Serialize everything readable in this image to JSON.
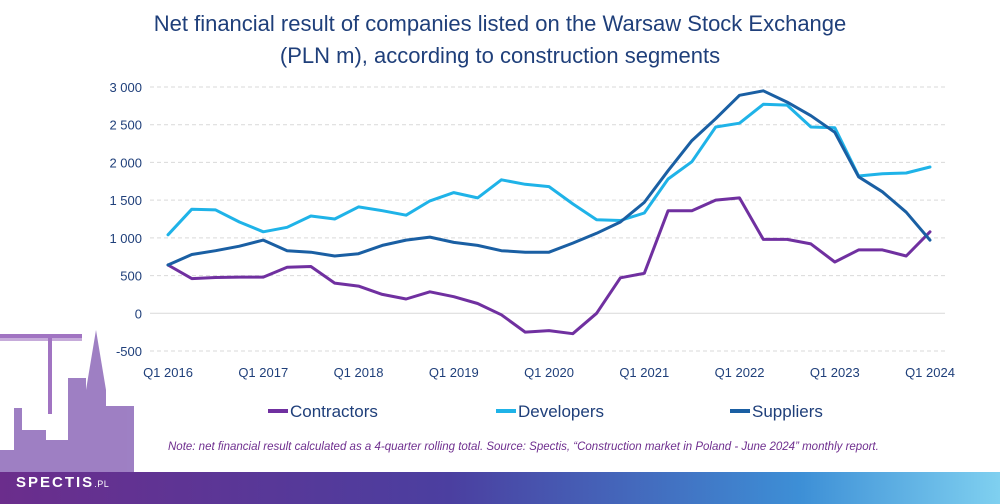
{
  "title_line1": "Net financial result of companies listed on the Warsaw Stock Exchange",
  "title_line2": "(PLN m), according to construction segments",
  "note": "Note: net financial result calculated as a 4-quarter rolling total. Source: Spectis, “Construction market in Poland - June 2024” monthly report.",
  "logo": {
    "name": "SPECTIS",
    "suffix": ".PL"
  },
  "colors": {
    "title": "#1f3f7a",
    "note": "#6f2f8f",
    "grid": "#d9d9d9"
  },
  "chart_data": {
    "type": "line",
    "x_tick_labels": [
      "Q1 2016",
      "Q1 2017",
      "Q1 2018",
      "Q1 2019",
      "Q1 2020",
      "Q1 2021",
      "Q1 2022",
      "Q1 2023",
      "Q1 2024"
    ],
    "y_tick_labels": [
      "-500",
      "0",
      "500",
      "1 000",
      "1 500",
      "2 000",
      "2 500",
      "3 000"
    ],
    "ylim": [
      -500,
      3000
    ],
    "grid": "horizontal",
    "legend_position": "bottom",
    "quarters_count": 33,
    "series": [
      {
        "name": "Contractors",
        "color": "#7030a0",
        "values": [
          640,
          460,
          475,
          480,
          480,
          610,
          620,
          400,
          360,
          250,
          190,
          285,
          220,
          130,
          -20,
          -250,
          -230,
          -270,
          0,
          470,
          530,
          1360,
          1360,
          1500,
          1530,
          980,
          980,
          920,
          680,
          840,
          840,
          760,
          1080
        ]
      },
      {
        "name": "Developers",
        "color": "#1fb3e8",
        "values": [
          1040,
          1380,
          1370,
          1210,
          1080,
          1140,
          1290,
          1250,
          1410,
          1360,
          1300,
          1490,
          1600,
          1530,
          1770,
          1710,
          1680,
          1450,
          1240,
          1230,
          1330,
          1780,
          2010,
          2470,
          2520,
          2770,
          2760,
          2470,
          2460,
          1820,
          1850,
          1860,
          1940
        ]
      },
      {
        "name": "Suppliers",
        "color": "#1a5fa3",
        "values": [
          640,
          780,
          830,
          890,
          970,
          830,
          810,
          760,
          790,
          900,
          970,
          1010,
          940,
          900,
          830,
          810,
          810,
          930,
          1060,
          1210,
          1470,
          1890,
          2290,
          2580,
          2890,
          2950,
          2800,
          2620,
          2400,
          1810,
          1610,
          1340,
          970
        ]
      }
    ]
  }
}
